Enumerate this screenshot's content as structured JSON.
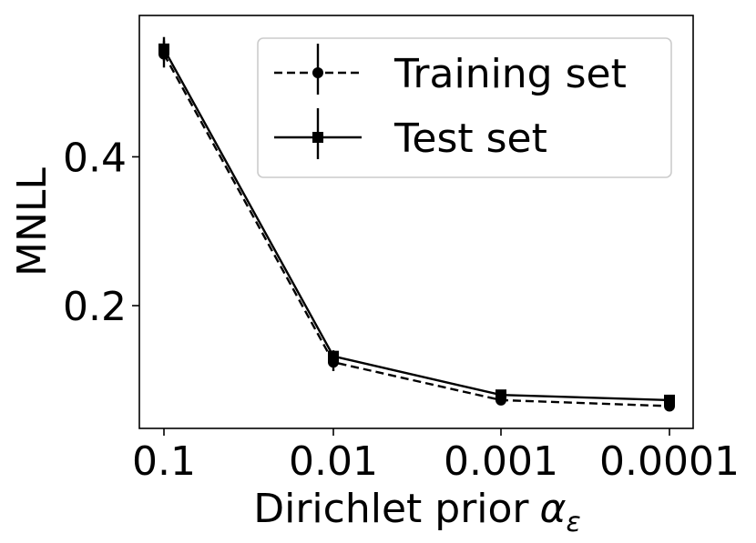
{
  "chart_data": {
    "type": "line",
    "categories": [
      "0.1",
      "0.01",
      "0.001",
      "0.0001"
    ],
    "xlabel": "Dirichlet prior",
    "xlabel_symbol": "α",
    "xlabel_subscript": "ε",
    "ylabel": "MNLL",
    "ylim": [
      0.035,
      0.59
    ],
    "yticks": [
      {
        "value": 0.2,
        "label": "0.2"
      },
      {
        "value": 0.4,
        "label": "0.4"
      }
    ],
    "grid": false,
    "legend_position": "top-right",
    "series": [
      {
        "name": "Training set",
        "values": [
          0.538,
          0.124,
          0.073,
          0.065
        ],
        "errors": [
          0.018,
          0.012,
          0.004,
          0.004
        ],
        "line_style": "dashed",
        "marker": "circle",
        "color": "#000000"
      },
      {
        "name": "Test set",
        "values": [
          0.545,
          0.132,
          0.08,
          0.073
        ],
        "errors": [
          0.016,
          0.008,
          0.004,
          0.004
        ],
        "line_style": "solid",
        "marker": "square",
        "color": "#000000"
      }
    ]
  }
}
